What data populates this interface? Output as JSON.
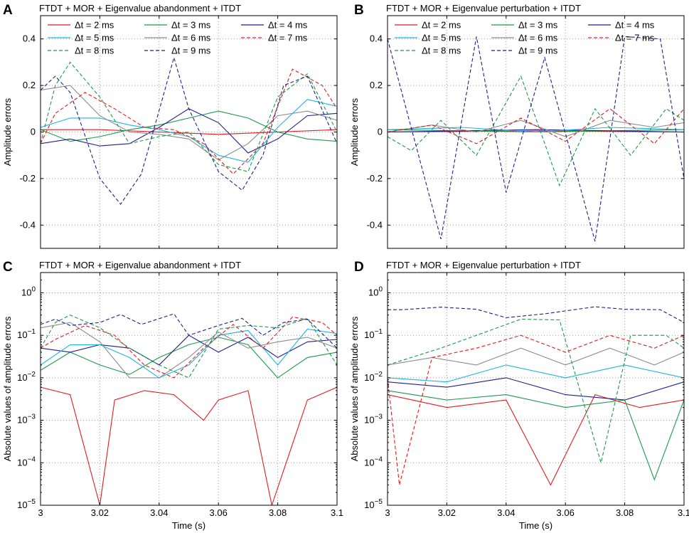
{
  "chart_data": [
    {
      "panel": "A",
      "type": "line",
      "title": "FTDT + MOR + Eigenvalue abandonment + ITDT",
      "ylabel": "Amplitude errors",
      "xlabel": "",
      "yscale": "linear",
      "xlim": [
        3,
        3.1
      ],
      "ylim": [
        -0.5,
        0.5
      ],
      "yticks": [
        -0.4,
        -0.2,
        0,
        0.2,
        0.4
      ],
      "yticklabels": [
        "-0.4",
        "-0.2",
        "0",
        "0.2",
        "0.4"
      ],
      "xticks": [
        3,
        3.02,
        3.04,
        3.06,
        3.08,
        3.1
      ],
      "xticklabels": [
        "",
        "",
        "",
        "",
        "",
        ""
      ],
      "grid": true,
      "legend_position": "top",
      "series": [
        {
          "name": "Δt = 2 ms",
          "color": "#e41a1c",
          "dash": "solid",
          "x": [
            3,
            3.02,
            3.04,
            3.06,
            3.08,
            3.1
          ],
          "values": [
            0.01,
            0.01,
            0.0,
            -0.01,
            0.0,
            0.01
          ]
        },
        {
          "name": "Δt = 3 ms",
          "color": "#1a9a4a",
          "dash": "solid",
          "x": [
            3,
            3.01,
            3.02,
            3.03,
            3.04,
            3.05,
            3.06,
            3.07,
            3.08,
            3.09,
            3.1
          ],
          "values": [
            0.01,
            -0.04,
            -0.02,
            0.01,
            0.03,
            0.06,
            0.09,
            0.06,
            0.0,
            -0.03,
            -0.04
          ]
        },
        {
          "name": "Δt = 4 ms",
          "color": "#1f1f8f",
          "dash": "solid",
          "x": [
            3,
            3.01,
            3.02,
            3.03,
            3.04,
            3.05,
            3.06,
            3.07,
            3.08,
            3.09,
            3.1
          ],
          "values": [
            -0.05,
            -0.03,
            -0.06,
            -0.05,
            0.02,
            0.1,
            0.04,
            -0.09,
            -0.03,
            0.07,
            0.08
          ]
        },
        {
          "name": "Δt = 5 ms",
          "color": "#1fb4e4",
          "dash": "solid",
          "x": [
            3,
            3.01,
            3.02,
            3.03,
            3.04,
            3.05,
            3.06,
            3.07,
            3.08,
            3.09,
            3.1
          ],
          "values": [
            0.02,
            0.06,
            0.06,
            0.03,
            0.01,
            -0.02,
            -0.1,
            -0.13,
            0.02,
            0.14,
            0.11
          ]
        },
        {
          "name": "Δt = 6 ms",
          "color": "#8c8c8c",
          "dash": "solid",
          "x": [
            3,
            3.01,
            3.02,
            3.03,
            3.04,
            3.05,
            3.06,
            3.07,
            3.08,
            3.09,
            3.1
          ],
          "values": [
            0.18,
            0.2,
            0.07,
            0.0,
            -0.01,
            -0.03,
            -0.12,
            -0.05,
            0.07,
            0.09,
            0.05
          ]
        },
        {
          "name": "Δt = 7 ms",
          "color": "#e41a1c",
          "dash": "dashed",
          "x": [
            3,
            3.005,
            3.015,
            3.025,
            3.035,
            3.045,
            3.055,
            3.065,
            3.075,
            3.085,
            3.095,
            3.1
          ],
          "values": [
            -0.05,
            0.08,
            0.17,
            0.1,
            0.02,
            0.01,
            -0.05,
            -0.18,
            -0.05,
            0.27,
            0.2,
            0.1
          ]
        },
        {
          "name": "Δt = 8 ms",
          "color": "#1a9a4a",
          "dash": "dashed",
          "x": [
            3,
            3.005,
            3.01,
            3.02,
            3.03,
            3.04,
            3.05,
            3.06,
            3.07,
            3.08,
            3.09,
            3.1
          ],
          "values": [
            -0.05,
            0.2,
            0.3,
            0.15,
            -0.05,
            -0.02,
            0.0,
            -0.14,
            -0.17,
            0.15,
            0.25,
            0.0
          ]
        },
        {
          "name": "Δt = 9 ms",
          "color": "#1f1f8f",
          "dash": "dashed",
          "x": [
            3,
            3.005,
            3.01,
            3.02,
            3.027,
            3.034,
            3.045,
            3.05,
            3.06,
            3.068,
            3.075,
            3.082,
            3.09,
            3.1
          ],
          "values": [
            0.18,
            0.24,
            0.17,
            -0.2,
            -0.31,
            -0.18,
            0.32,
            0.1,
            -0.17,
            -0.25,
            -0.1,
            0.2,
            0.24,
            -0.05
          ]
        }
      ]
    },
    {
      "panel": "B",
      "type": "line",
      "title": "FTDT + MOR + Eigenvalue perturbation + ITDT",
      "ylabel": "Amplitude errors",
      "xlabel": "",
      "yscale": "linear",
      "xlim": [
        3,
        3.1
      ],
      "ylim": [
        -0.5,
        0.5
      ],
      "yticks": [
        -0.4,
        -0.2,
        0,
        0.2,
        0.4
      ],
      "yticklabels": [
        "-0.4",
        "-0.2",
        "0",
        "0.2",
        "0.4"
      ],
      "xticks": [
        3,
        3.02,
        3.04,
        3.06,
        3.08,
        3.1
      ],
      "xticklabels": [
        "",
        "",
        "",
        "",
        "",
        ""
      ],
      "grid": true,
      "legend_position": "top",
      "series": [
        {
          "name": "Δt = 2 ms",
          "color": "#e41a1c",
          "dash": "solid",
          "x": [
            3,
            3.05,
            3.1
          ],
          "values": [
            0.0,
            0.005,
            0.0
          ]
        },
        {
          "name": "Δt = 3 ms",
          "color": "#1a9a4a",
          "dash": "solid",
          "x": [
            3,
            3.05,
            3.1
          ],
          "values": [
            0.01,
            0.0,
            0.01
          ]
        },
        {
          "name": "Δt = 4 ms",
          "color": "#1f1f8f",
          "dash": "solid",
          "x": [
            3,
            3.05,
            3.1
          ],
          "values": [
            0.0,
            0.01,
            0.0
          ]
        },
        {
          "name": "Δt = 5 ms",
          "color": "#1fb4e4",
          "dash": "solid",
          "x": [
            3,
            3.025,
            3.05,
            3.075,
            3.1
          ],
          "values": [
            0.01,
            0.02,
            0.0,
            0.02,
            0.01
          ]
        },
        {
          "name": "Δt = 6 ms",
          "color": "#8c8c8c",
          "dash": "solid",
          "x": [
            3,
            3.015,
            3.03,
            3.045,
            3.06,
            3.075,
            3.09,
            3.1
          ],
          "values": [
            0.0,
            0.03,
            0.0,
            0.05,
            -0.02,
            0.05,
            0.02,
            0.04
          ]
        },
        {
          "name": "Δt = 7 ms",
          "color": "#e41a1c",
          "dash": "dashed",
          "x": [
            3,
            3.015,
            3.03,
            3.045,
            3.06,
            3.075,
            3.09,
            3.1
          ],
          "values": [
            0.0,
            0.03,
            -0.05,
            0.06,
            -0.04,
            0.1,
            -0.05,
            0.1
          ]
        },
        {
          "name": "Δt = 8 ms",
          "color": "#1a9a4a",
          "dash": "dashed",
          "x": [
            3,
            3.008,
            3.018,
            3.03,
            3.045,
            3.058,
            3.07,
            3.082,
            3.094,
            3.1
          ],
          "values": [
            -0.02,
            -0.08,
            0.05,
            -0.1,
            0.24,
            -0.23,
            0.1,
            -0.1,
            0.1,
            0.05
          ]
        },
        {
          "name": "Δt = 9 ms",
          "color": "#1f1f8f",
          "dash": "dashed",
          "x": [
            3,
            3.018,
            3.03,
            3.04,
            3.053,
            3.07,
            3.08,
            3.092,
            3.1
          ],
          "values": [
            0.4,
            -0.46,
            0.41,
            -0.26,
            0.32,
            -0.47,
            0.41,
            0.4,
            -0.2
          ]
        }
      ]
    },
    {
      "panel": "C",
      "type": "line",
      "title": "FTDT + MOR + Eigenvalue abandonment + ITDT",
      "ylabel": "Absolute values of amplitude errors",
      "xlabel": "Time (s)",
      "yscale": "log",
      "xlim": [
        3,
        3.1
      ],
      "ylim": [
        1e-05,
        3
      ],
      "yticks": [
        1e-05,
        0.0001,
        0.001,
        0.01,
        0.1,
        1
      ],
      "xticks": [
        3,
        3.02,
        3.04,
        3.06,
        3.08,
        3.1
      ],
      "xticklabels": [
        "3",
        "3.02",
        "3.04",
        "3.06",
        "3.08",
        "3.1"
      ],
      "grid": true,
      "series": [
        {
          "name": "Δt = 2 ms",
          "color": "#e41a1c",
          "dash": "solid",
          "x": [
            3,
            3.01,
            3.02,
            3.025,
            3.035,
            3.045,
            3.055,
            3.06,
            3.07,
            3.078,
            3.09,
            3.1
          ],
          "values": [
            0.006,
            0.004,
            1e-05,
            0.003,
            0.005,
            0.004,
            0.001,
            0.003,
            0.005,
            1e-05,
            0.003,
            0.006
          ]
        },
        {
          "name": "Δt = 3 ms",
          "color": "#1a9a4a",
          "dash": "solid",
          "x": [
            3,
            3.01,
            3.02,
            3.03,
            3.04,
            3.05,
            3.06,
            3.07,
            3.08,
            3.09,
            3.1
          ],
          "values": [
            0.015,
            0.04,
            0.02,
            0.012,
            0.03,
            0.06,
            0.09,
            0.06,
            0.01,
            0.03,
            0.04
          ]
        },
        {
          "name": "Δt = 4 ms",
          "color": "#1f1f8f",
          "dash": "solid",
          "x": [
            3,
            3.01,
            3.02,
            3.03,
            3.04,
            3.05,
            3.06,
            3.07,
            3.08,
            3.09,
            3.1
          ],
          "values": [
            0.05,
            0.04,
            0.06,
            0.05,
            0.02,
            0.1,
            0.04,
            0.09,
            0.03,
            0.07,
            0.08
          ]
        },
        {
          "name": "Δt = 5 ms",
          "color": "#1fb4e4",
          "dash": "solid",
          "x": [
            3,
            3.01,
            3.02,
            3.03,
            3.04,
            3.05,
            3.06,
            3.07,
            3.08,
            3.09,
            3.1
          ],
          "values": [
            0.02,
            0.06,
            0.06,
            0.03,
            0.01,
            0.02,
            0.1,
            0.13,
            0.02,
            0.14,
            0.11
          ]
        },
        {
          "name": "Δt = 6 ms",
          "color": "#8c8c8c",
          "dash": "solid",
          "x": [
            3,
            3.01,
            3.02,
            3.03,
            3.04,
            3.05,
            3.06,
            3.07,
            3.08,
            3.09,
            3.1
          ],
          "values": [
            0.15,
            0.2,
            0.07,
            0.01,
            0.01,
            0.03,
            0.12,
            0.05,
            0.07,
            0.09,
            0.05
          ]
        },
        {
          "name": "Δt = 7 ms",
          "color": "#e41a1c",
          "dash": "dashed",
          "x": [
            3,
            3.005,
            3.015,
            3.025,
            3.035,
            3.045,
            3.055,
            3.065,
            3.075,
            3.085,
            3.095,
            3.1
          ],
          "values": [
            0.05,
            0.08,
            0.17,
            0.1,
            0.02,
            0.01,
            0.05,
            0.18,
            0.05,
            0.27,
            0.2,
            0.1
          ]
        },
        {
          "name": "Δt = 8 ms",
          "color": "#1a9a4a",
          "dash": "dashed",
          "x": [
            3,
            3.005,
            3.01,
            3.02,
            3.03,
            3.04,
            3.05,
            3.06,
            3.07,
            3.08,
            3.09,
            3.1
          ],
          "values": [
            0.05,
            0.2,
            0.3,
            0.15,
            0.05,
            0.02,
            0.01,
            0.14,
            0.17,
            0.15,
            0.25,
            0.02
          ]
        },
        {
          "name": "Δt = 9 ms",
          "color": "#1f1f8f",
          "dash": "dashed",
          "x": [
            3,
            3.005,
            3.01,
            3.02,
            3.027,
            3.034,
            3.045,
            3.05,
            3.06,
            3.068,
            3.075,
            3.082,
            3.09,
            3.1
          ],
          "values": [
            0.18,
            0.24,
            0.17,
            0.2,
            0.31,
            0.18,
            0.32,
            0.1,
            0.17,
            0.25,
            0.1,
            0.2,
            0.24,
            0.05
          ]
        }
      ]
    },
    {
      "panel": "D",
      "type": "line",
      "title": "FTDT + MOR + Eigenvalue perturbation + ITDT",
      "ylabel": "Absolute values of amplitude errors",
      "xlabel": "Time (s)",
      "yscale": "log",
      "xlim": [
        3,
        3.1
      ],
      "ylim": [
        1e-05,
        3
      ],
      "yticks": [
        1e-05,
        0.0001,
        0.001,
        0.01,
        0.1,
        1
      ],
      "xticks": [
        3,
        3.02,
        3.04,
        3.06,
        3.08,
        3.1
      ],
      "xticklabels": [
        "3",
        "3.02",
        "3.04",
        "3.06",
        "3.08",
        "3.1"
      ],
      "grid": true,
      "series": [
        {
          "name": "Δt = 2 ms",
          "color": "#e41a1c",
          "dash": "solid",
          "x": [
            3,
            3.02,
            3.04,
            3.055,
            3.07,
            3.085,
            3.1
          ],
          "values": [
            0.004,
            0.002,
            0.003,
            3e-05,
            0.004,
            0.002,
            0.003
          ]
        },
        {
          "name": "Δt = 3 ms",
          "color": "#1a9a4a",
          "dash": "solid",
          "x": [
            3,
            3.02,
            3.04,
            3.06,
            3.08,
            3.09,
            3.1
          ],
          "values": [
            0.005,
            0.003,
            0.004,
            0.002,
            0.003,
            4e-05,
            0.003
          ]
        },
        {
          "name": "Δt = 4 ms",
          "color": "#1f1f8f",
          "dash": "solid",
          "x": [
            3,
            3.02,
            3.04,
            3.06,
            3.08,
            3.1
          ],
          "values": [
            0.008,
            0.006,
            0.01,
            0.004,
            0.003,
            0.008
          ]
        },
        {
          "name": "Δt = 5 ms",
          "color": "#1fb4e4",
          "dash": "solid",
          "x": [
            3,
            3.02,
            3.04,
            3.06,
            3.08,
            3.1
          ],
          "values": [
            0.01,
            0.008,
            0.02,
            0.01,
            0.02,
            0.01
          ]
        },
        {
          "name": "Δt = 6 ms",
          "color": "#8c8c8c",
          "dash": "solid",
          "x": [
            3,
            3.015,
            3.03,
            3.045,
            3.06,
            3.075,
            3.09,
            3.1
          ],
          "values": [
            0.02,
            0.03,
            0.02,
            0.05,
            0.02,
            0.05,
            0.02,
            0.04
          ]
        },
        {
          "name": "Δt = 7 ms",
          "color": "#e41a1c",
          "dash": "dashed",
          "x": [
            3,
            3.004,
            3.015,
            3.03,
            3.045,
            3.06,
            3.075,
            3.09,
            3.1
          ],
          "values": [
            0.01,
            3e-05,
            0.03,
            0.05,
            0.1,
            0.04,
            0.1,
            0.05,
            0.1
          ]
        },
        {
          "name": "Δt = 8 ms",
          "color": "#1a9a4a",
          "dash": "dashed",
          "x": [
            3,
            3.018,
            3.03,
            3.045,
            3.058,
            3.072,
            3.082,
            3.094,
            3.1
          ],
          "values": [
            0.02,
            0.05,
            0.1,
            0.24,
            0.23,
            0.0001,
            0.1,
            0.1,
            0.05
          ]
        },
        {
          "name": "Δt = 9 ms",
          "color": "#1f1f8f",
          "dash": "dashed",
          "x": [
            3,
            3.005,
            3.018,
            3.03,
            3.04,
            3.053,
            3.07,
            3.08,
            3.092,
            3.1
          ],
          "values": [
            0.4,
            0.4,
            0.46,
            0.41,
            0.26,
            0.32,
            0.47,
            0.41,
            0.4,
            0.2
          ]
        }
      ]
    }
  ]
}
